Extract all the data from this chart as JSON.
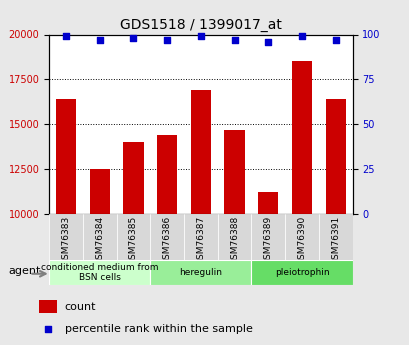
{
  "title": "GDS1518 / 1399017_at",
  "categories": [
    "GSM76383",
    "GSM76384",
    "GSM76385",
    "GSM76386",
    "GSM76387",
    "GSM76388",
    "GSM76389",
    "GSM76390",
    "GSM76391"
  ],
  "counts": [
    16400,
    12500,
    14000,
    14400,
    16900,
    14700,
    11200,
    18500,
    16400
  ],
  "percentiles": [
    99,
    97,
    98,
    97,
    99,
    97,
    96,
    99,
    97
  ],
  "ylim_left": [
    10000,
    20000
  ],
  "ylim_right": [
    0,
    100
  ],
  "yticks_left": [
    10000,
    12500,
    15000,
    17500,
    20000
  ],
  "yticks_right": [
    0,
    25,
    50,
    75,
    100
  ],
  "bar_color": "#cc0000",
  "dot_color": "#0000cc",
  "bar_width": 0.6,
  "groups": [
    {
      "label": "conditioned medium from\nBSN cells",
      "start": 0,
      "end": 3,
      "color": "#ccffcc"
    },
    {
      "label": "heregulin",
      "start": 3,
      "end": 6,
      "color": "#99ee99"
    },
    {
      "label": "pleiotrophin",
      "start": 6,
      "end": 9,
      "color": "#66dd66"
    }
  ],
  "agent_label": "agent",
  "legend_count_label": "count",
  "legend_percentile_label": "percentile rank within the sample",
  "tick_label_color_left": "#cc0000",
  "tick_label_color_right": "#0000cc",
  "background_color": "#e8e8e8",
  "plot_bg_color": "#ffffff"
}
